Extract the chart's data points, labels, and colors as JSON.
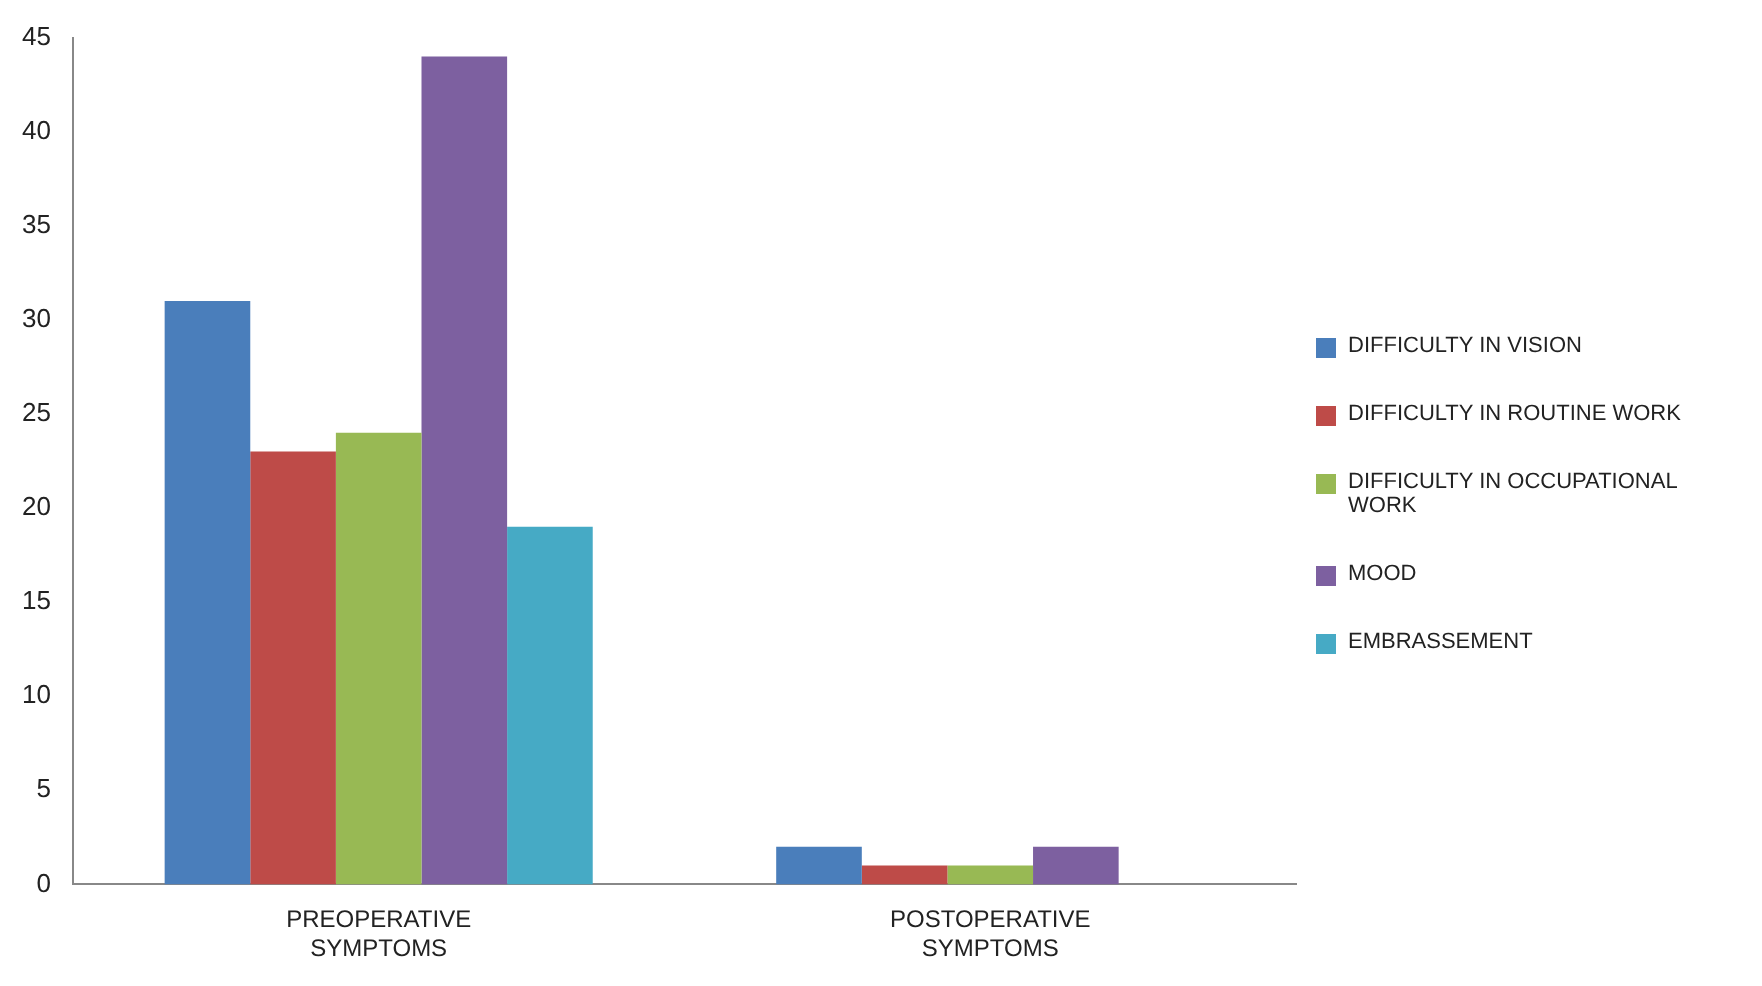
{
  "chart_data": {
    "type": "bar",
    "categories": [
      "PREOPERATIVE SYMPTOMS",
      "POSTOPERATIVE SYMPTOMS"
    ],
    "series": [
      {
        "name": "DIFFICULTY IN VISION",
        "color": "#4a7ebb",
        "values": [
          31,
          2
        ]
      },
      {
        "name": "DIFFICULTY IN ROUTINE  WORK",
        "color": "#be4b48",
        "values": [
          23,
          1
        ]
      },
      {
        "name": "DIFFICULTY IN OCCUPATIONAL WORK",
        "color": "#98b954",
        "values": [
          24,
          1
        ]
      },
      {
        "name": "MOOD",
        "color": "#7d60a0",
        "values": [
          44,
          2
        ]
      },
      {
        "name": "EMBRASSEMENT",
        "color": "#46aac5",
        "values": [
          19,
          0
        ]
      }
    ],
    "ylim": [
      0,
      45
    ],
    "yticks": [
      0,
      5,
      10,
      15,
      20,
      25,
      30,
      35,
      40,
      45
    ],
    "grid": false,
    "legend": "right"
  }
}
